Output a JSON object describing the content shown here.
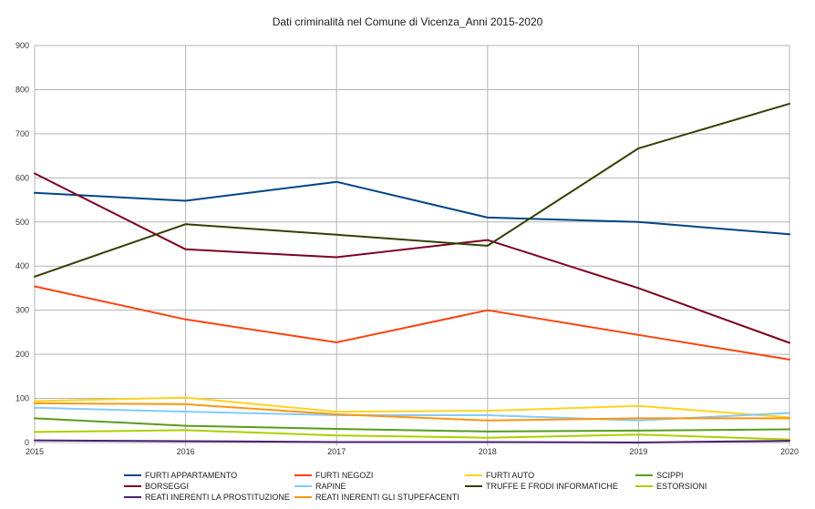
{
  "chart_data": {
    "type": "line",
    "title": "Dati criminalità nel Comune di Vicenza_Anni 2015-2020",
    "xlabel": "",
    "ylabel": "",
    "x": [
      "2015",
      "2016",
      "2017",
      "2018",
      "2019",
      "2020"
    ],
    "ylim": [
      0,
      900
    ],
    "yticks": [
      0,
      100,
      200,
      300,
      400,
      500,
      600,
      700,
      800,
      900
    ],
    "grid": true,
    "legend_position": "bottom",
    "series": [
      {
        "name": "FURTI APPARTAMENTO",
        "color": "#004586",
        "values": [
          566,
          548,
          591,
          510,
          500,
          472
        ]
      },
      {
        "name": "FURTI NEGOZI",
        "color": "#ff420e",
        "values": [
          354,
          279,
          227,
          300,
          244,
          188
        ]
      },
      {
        "name": "FURTI AUTO",
        "color": "#ffd320",
        "values": [
          94,
          102,
          70,
          72,
          83,
          57
        ]
      },
      {
        "name": "SCIPPI",
        "color": "#579d1c",
        "values": [
          55,
          38,
          31,
          25,
          27,
          30
        ]
      },
      {
        "name": "BORSEGGI",
        "color": "#7e0021",
        "values": [
          610,
          438,
          420,
          459,
          350,
          226
        ]
      },
      {
        "name": "RAPINE",
        "color": "#83caff",
        "values": [
          79,
          70,
          62,
          62,
          50,
          67
        ]
      },
      {
        "name": "TRUFFE E FRODI INFORMATICHE",
        "color": "#314004",
        "values": [
          376,
          495,
          471,
          446,
          667,
          768
        ]
      },
      {
        "name": "ESTORSIONI",
        "color": "#aecf00",
        "values": [
          24,
          28,
          16,
          11,
          18,
          7
        ]
      },
      {
        "name": "REATI INERENTI LA PROSTITUZIONE",
        "color": "#4b1f6f",
        "values": [
          5,
          3,
          1,
          1,
          0,
          4
        ]
      },
      {
        "name": "REATI INERENTI GLI STUPEFACENTI",
        "color": "#ff950e",
        "values": [
          89,
          87,
          64,
          50,
          55,
          55
        ]
      }
    ]
  }
}
